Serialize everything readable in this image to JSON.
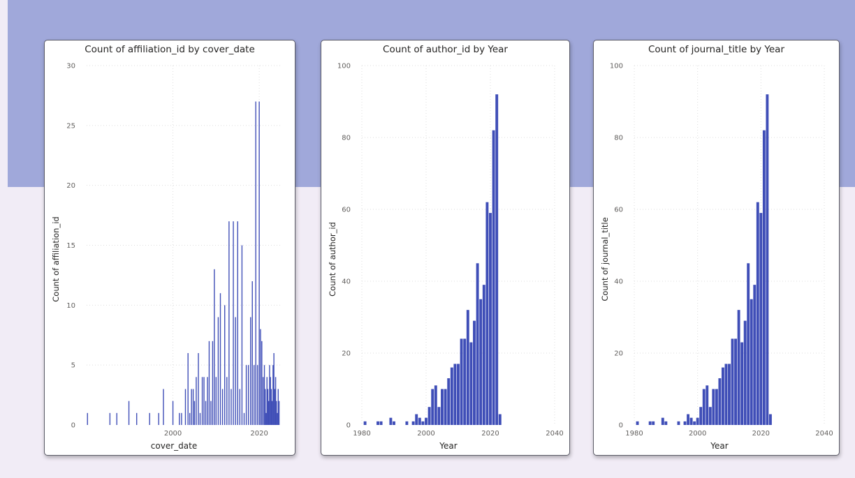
{
  "colors": {
    "bar": "#3f4eb7",
    "header_band": "#a0a8da",
    "page_background": "#f1ecf6",
    "grid": "#dddddd",
    "text": "#252423",
    "tick_text": "#605e5c"
  },
  "chart_data": [
    {
      "type": "bar",
      "title": "Count of affiliation_id by cover_date",
      "xlabel": "cover_date",
      "ylabel": "Count of affiliation_id",
      "xlim": [
        1980,
        2025
      ],
      "ylim": [
        0,
        30
      ],
      "x_ticks": [
        2000,
        2020
      ],
      "y_ticks": [
        0,
        5,
        10,
        15,
        20,
        25,
        30
      ],
      "grid": true,
      "x": [
        1980.2,
        1985.4,
        1987.0,
        1989.8,
        1991.6,
        1994.6,
        1996.7,
        1997.8,
        2000.0,
        2001.5,
        2002.0,
        2002.9,
        2003.5,
        2003.9,
        2004.3,
        2004.7,
        2005.0,
        2005.4,
        2005.9,
        2006.3,
        2006.8,
        2007.2,
        2007.6,
        2008.0,
        2008.4,
        2008.8,
        2009.2,
        2009.6,
        2010.0,
        2010.5,
        2011.0,
        2011.5,
        2012.0,
        2012.5,
        2013.0,
        2013.5,
        2014.0,
        2014.5,
        2015.0,
        2015.5,
        2016.0,
        2016.5,
        2017.0,
        2017.5,
        2018.0,
        2018.4,
        2018.8,
        2019.2,
        2019.6,
        2020.0,
        2020.3,
        2020.6,
        2020.9,
        2021.2,
        2021.4,
        2021.6,
        2021.8,
        2022.0,
        2022.2,
        2022.4,
        2022.6,
        2022.8,
        2023.0,
        2023.2,
        2023.4,
        2023.6,
        2023.8,
        2024.0,
        2024.2,
        2024.4,
        2024.6
      ],
      "values": [
        1,
        1,
        1,
        2,
        1,
        1,
        1,
        3,
        2,
        1,
        1,
        3,
        6,
        1,
        3,
        3,
        2,
        4,
        6,
        1,
        4,
        4,
        2,
        4,
        7,
        2,
        7,
        13,
        4,
        9,
        11,
        3,
        10,
        4,
        17,
        3,
        17,
        9,
        17,
        3,
        15,
        1,
        5,
        5,
        9,
        12,
        5,
        27,
        5,
        27,
        8,
        7,
        4,
        5,
        3,
        1,
        4,
        3,
        2,
        5,
        4,
        3,
        2,
        5,
        6,
        3,
        4,
        2,
        1,
        3,
        2
      ]
    },
    {
      "type": "bar",
      "title": "Count of author_id by Year",
      "xlabel": "Year",
      "ylabel": "Count of author_id",
      "xlim": [
        1980,
        2040
      ],
      "ylim": [
        0,
        100
      ],
      "x_ticks": [
        1980,
        2000,
        2020,
        2040
      ],
      "y_ticks": [
        0,
        20,
        40,
        60,
        80,
        100
      ],
      "grid": true,
      "x": [
        1981,
        1985,
        1986,
        1989,
        1990,
        1994,
        1996,
        1997,
        1998,
        1999,
        2000,
        2001,
        2002,
        2003,
        2004,
        2005,
        2006,
        2007,
        2008,
        2009,
        2010,
        2011,
        2012,
        2013,
        2014,
        2015,
        2016,
        2017,
        2018,
        2019,
        2020,
        2021,
        2022,
        2023,
        2024,
        2025
      ],
      "values": [
        1,
        1,
        1,
        2,
        1,
        1,
        1,
        3,
        2,
        1,
        2,
        5,
        10,
        11,
        5,
        10,
        10,
        13,
        16,
        17,
        17,
        24,
        24,
        32,
        23,
        29,
        45,
        35,
        39,
        62,
        59,
        82,
        92,
        3,
        0,
        0
      ]
    },
    {
      "type": "bar",
      "title": "Count of journal_title by Year",
      "xlabel": "Year",
      "ylabel": "Count of journal_title",
      "xlim": [
        1980,
        2040
      ],
      "ylim": [
        0,
        100
      ],
      "x_ticks": [
        1980,
        2000,
        2020,
        2040
      ],
      "y_ticks": [
        0,
        20,
        40,
        60,
        80,
        100
      ],
      "grid": true,
      "x": [
        1981,
        1985,
        1986,
        1989,
        1990,
        1994,
        1996,
        1997,
        1998,
        1999,
        2000,
        2001,
        2002,
        2003,
        2004,
        2005,
        2006,
        2007,
        2008,
        2009,
        2010,
        2011,
        2012,
        2013,
        2014,
        2015,
        2016,
        2017,
        2018,
        2019,
        2020,
        2021,
        2022,
        2023,
        2024,
        2025
      ],
      "values": [
        1,
        1,
        1,
        2,
        1,
        1,
        1,
        3,
        2,
        1,
        2,
        5,
        10,
        11,
        5,
        10,
        10,
        13,
        16,
        17,
        17,
        24,
        24,
        32,
        23,
        29,
        45,
        35,
        39,
        62,
        59,
        82,
        92,
        3,
        0,
        0
      ]
    }
  ]
}
